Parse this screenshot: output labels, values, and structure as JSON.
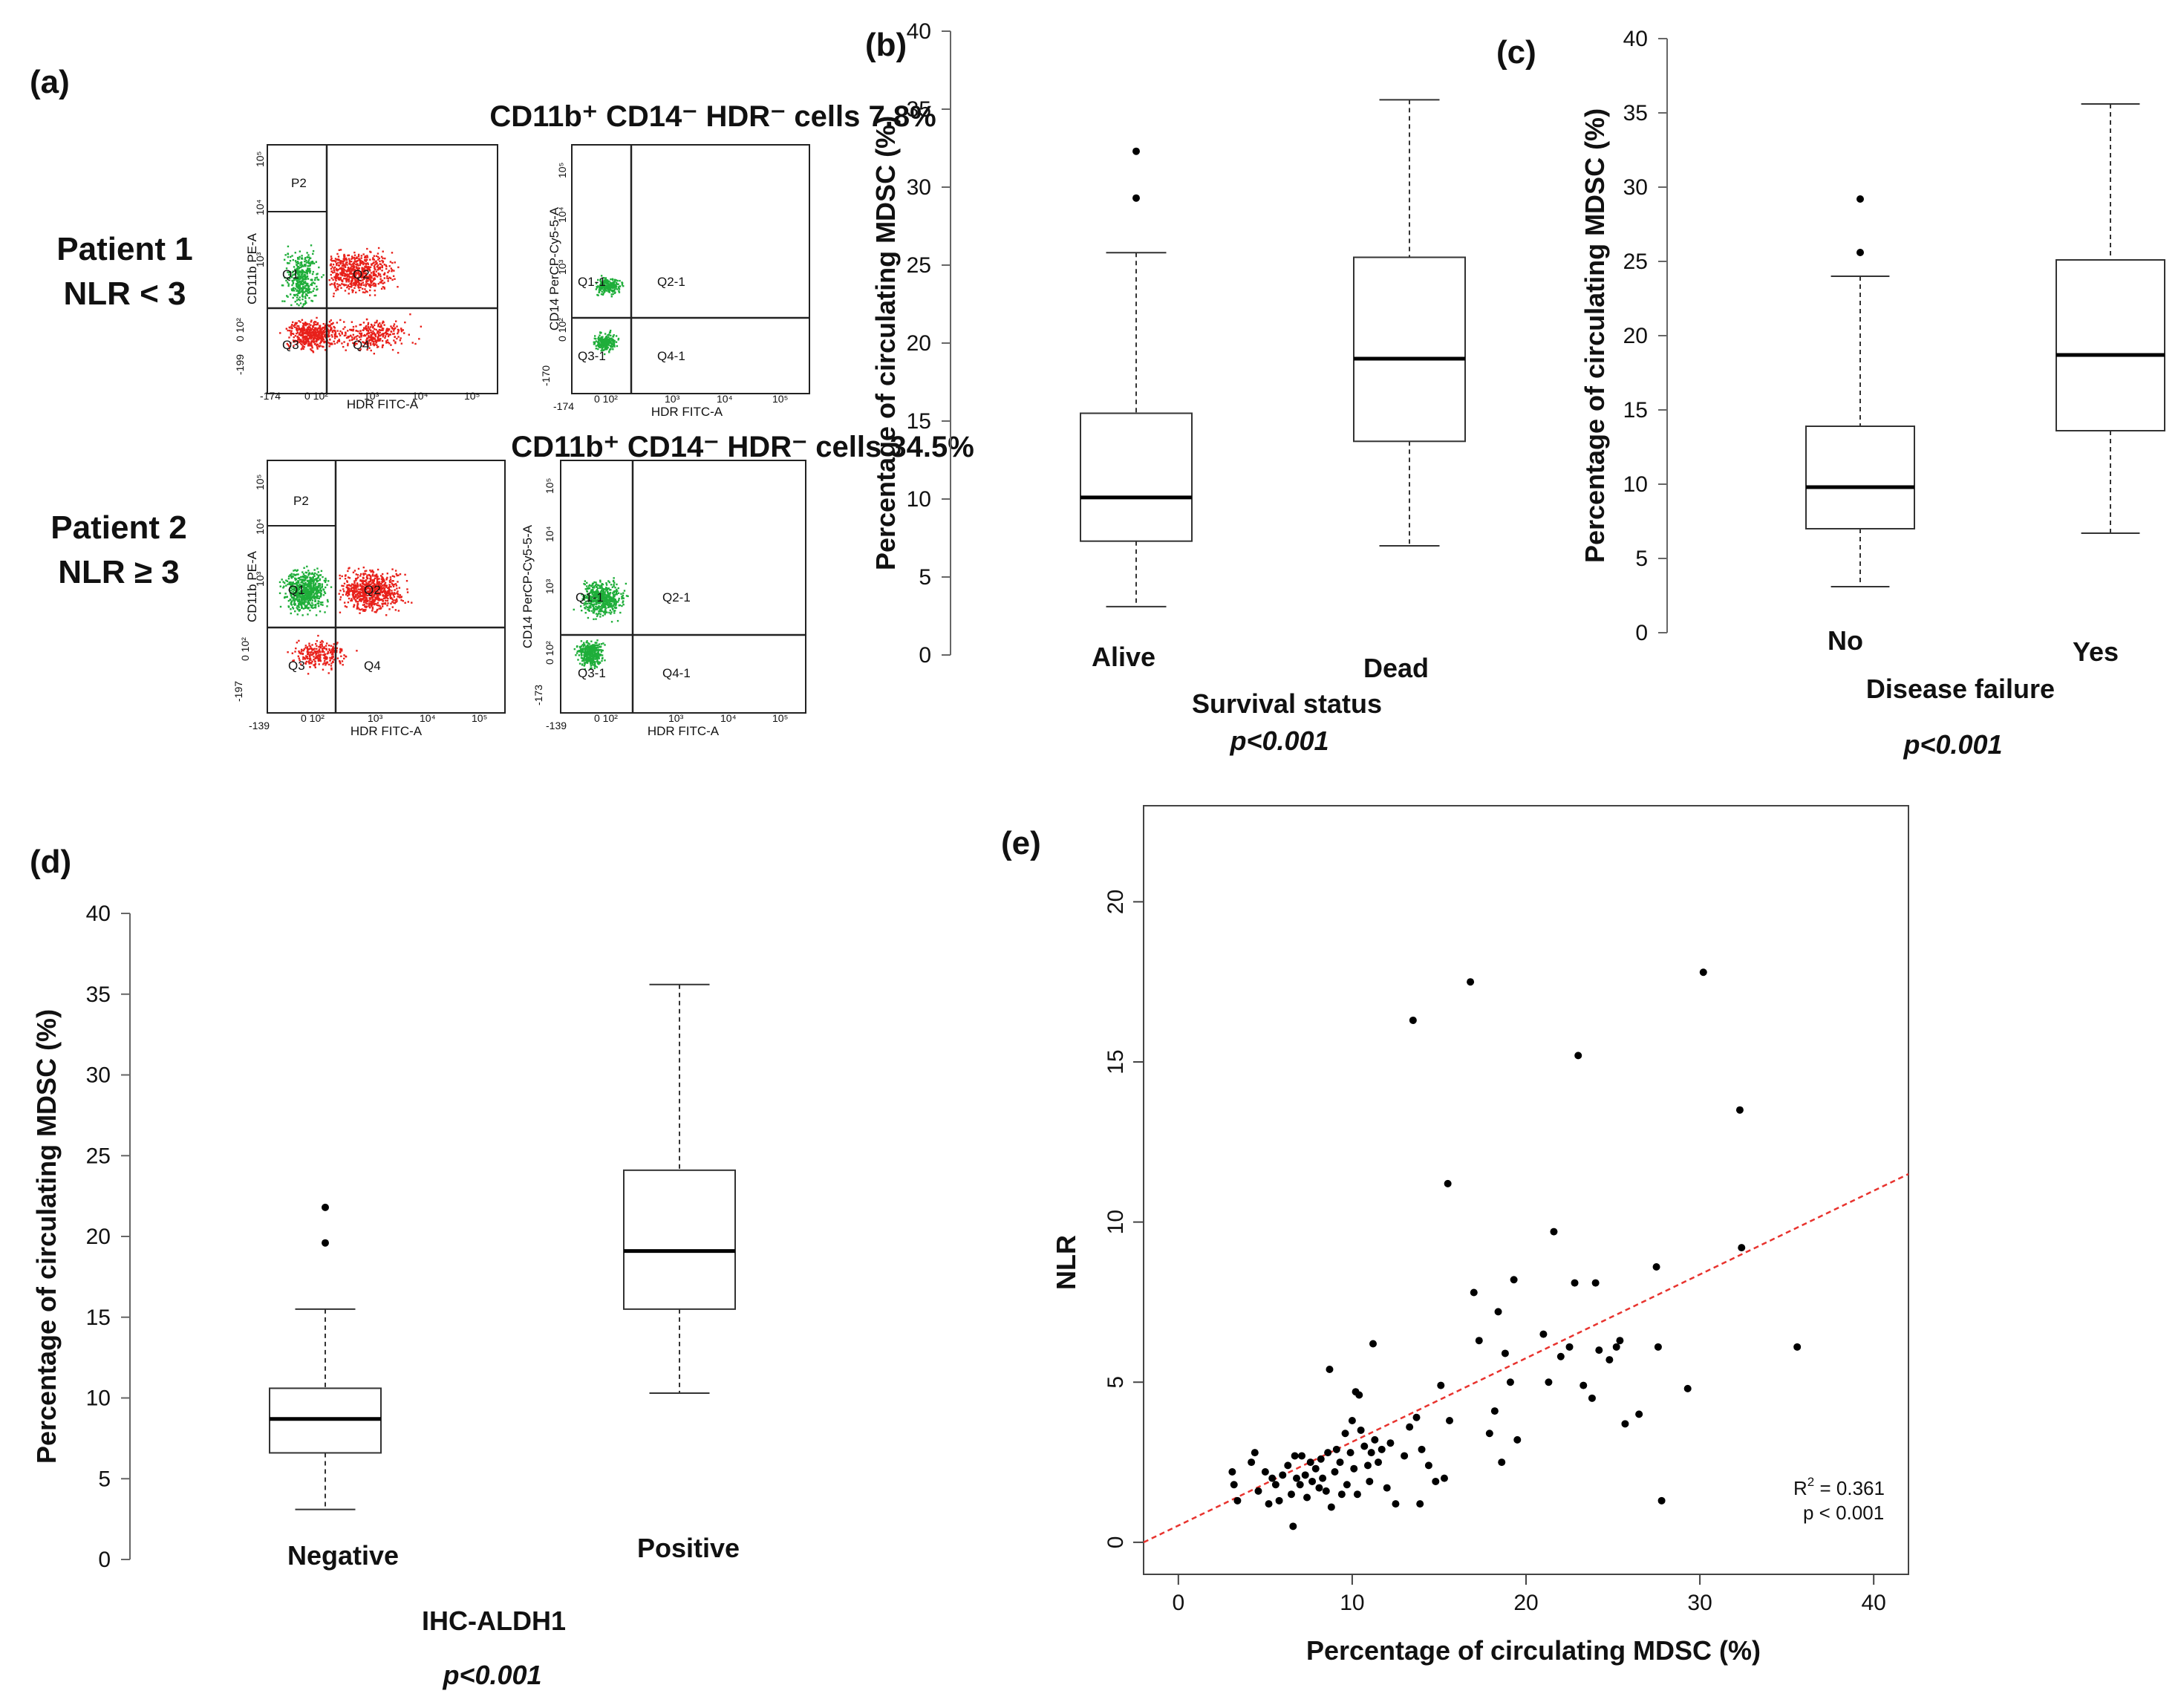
{
  "panel_a": {
    "label": "(a)",
    "patient1": {
      "line1": "Patient 1",
      "line2": "NLR < 3",
      "title": "CD11b⁺ CD14⁻ HDR⁻ cells 7.8%",
      "plot1": {
        "ylabel": "CD11b PE-A",
        "xlabel": "HDR FITC-A",
        "gate": "P2",
        "quadrants": [
          "Q1",
          "Q2",
          "Q3",
          "Q4"
        ],
        "xticks": [
          "-174",
          "0 10²",
          "10³",
          "10⁴",
          "10⁵"
        ],
        "yticks": [
          "-199",
          "0 10²",
          "10³",
          "10⁴",
          "10⁵"
        ]
      },
      "plot2": {
        "ylabel": "CD14 PerCP-Cy5-5-A",
        "xlabel": "HDR FITC-A",
        "quadrants": [
          "Q1-1",
          "Q2-1",
          "Q3-1",
          "Q4-1"
        ],
        "xticks": [
          "-174",
          "0 10²",
          "10³",
          "10⁴",
          "10⁵"
        ],
        "yticks": [
          "-170",
          "0 10²",
          "10³",
          "10⁴",
          "10⁵"
        ]
      }
    },
    "patient2": {
      "line1": "Patient 2",
      "line2": "NLR ≥ 3",
      "title": "CD11b⁺ CD14⁻ HDR⁻ cells 34.5%",
      "plot1": {
        "ylabel": "CD11b PE-A",
        "xlabel": "HDR FITC-A",
        "gate": "P2",
        "quadrants": [
          "Q1",
          "Q2",
          "Q3",
          "Q4"
        ],
        "xticks": [
          "-139",
          "0 10²",
          "10³",
          "10⁴",
          "10⁵"
        ],
        "yticks": [
          "-197",
          "0 10²",
          "10³",
          "10⁴",
          "10⁵"
        ]
      },
      "plot2": {
        "ylabel": "CD14 PerCP-Cy5-5-A",
        "xlabel": "HDR FITC-A",
        "quadrants": [
          "Q1-1",
          "Q2-1",
          "Q3-1",
          "Q4-1"
        ],
        "xticks": [
          "-139",
          "0 10²",
          "10³",
          "10⁴",
          "10⁵"
        ],
        "yticks": [
          "-173",
          "0 10²",
          "10³",
          "10⁴",
          "10⁵"
        ]
      }
    }
  },
  "colors": {
    "green": "#1fae3a",
    "red": "#e8211b",
    "box": "#333333",
    "regression": "#e8332e"
  },
  "chart_data": [
    {
      "id": "b",
      "label": "(b)",
      "type": "box",
      "ylabel": "Percentage of circulating MDSC (%)",
      "xlabel": "Survival status",
      "pvalue": "p<0.001",
      "ylim": [
        0,
        40
      ],
      "yticks": [
        0,
        5,
        10,
        15,
        20,
        25,
        30,
        35,
        40
      ],
      "categories": [
        "Alive",
        "Dead"
      ],
      "boxes": [
        {
          "min": 3.1,
          "q1": 7.3,
          "median": 10.1,
          "q3": 15.5,
          "max": 25.8,
          "outliers": [
            29.3,
            32.3
          ]
        },
        {
          "min": 7.0,
          "q1": 13.7,
          "median": 19.0,
          "q3": 25.5,
          "max": 35.6,
          "outliers": []
        }
      ]
    },
    {
      "id": "c",
      "label": "(c)",
      "type": "box",
      "ylabel": "Percentage of circulating MDSC (%)",
      "xlabel": "Disease failure",
      "pvalue": "p<0.001",
      "ylim": [
        0,
        40
      ],
      "yticks": [
        0,
        5,
        10,
        15,
        20,
        25,
        30,
        35,
        40
      ],
      "categories": [
        "No",
        "Yes"
      ],
      "boxes": [
        {
          "min": 3.1,
          "q1": 7.0,
          "median": 9.8,
          "q3": 13.9,
          "max": 24.0,
          "outliers": [
            25.6,
            29.2
          ]
        },
        {
          "min": 6.7,
          "q1": 13.6,
          "median": 18.7,
          "q3": 25.1,
          "max": 35.6,
          "outliers": []
        }
      ]
    },
    {
      "id": "d",
      "label": "(d)",
      "type": "box",
      "ylabel": "Percentage of circulating MDSC (%)",
      "xlabel": "IHC-ALDH1",
      "pvalue": "p<0.001",
      "ylim": [
        0,
        40
      ],
      "yticks": [
        0,
        5,
        10,
        15,
        20,
        25,
        30,
        35,
        40
      ],
      "categories": [
        "Negative",
        "Positive"
      ],
      "boxes": [
        {
          "min": 3.1,
          "q1": 6.6,
          "median": 8.7,
          "q3": 10.6,
          "max": 15.5,
          "outliers": [
            19.6,
            21.8
          ]
        },
        {
          "min": 10.3,
          "q1": 15.5,
          "median": 19.1,
          "q3": 24.1,
          "max": 35.6,
          "outliers": []
        }
      ]
    },
    {
      "id": "e",
      "label": "(e)",
      "type": "scatter",
      "xlabel": "Percentage of circulating MDSC (%)",
      "ylabel": "NLR",
      "xlim": [
        -2,
        42
      ],
      "ylim": [
        -1,
        23
      ],
      "xticks": [
        0,
        10,
        20,
        30,
        40
      ],
      "yticks": [
        0,
        5,
        10,
        15,
        20
      ],
      "r2_label": "R",
      "r2_sup": "2",
      "r2_value": " = 0.361",
      "pvalue": "p < 0.001",
      "regression": {
        "x0": -2,
        "y0": 0.0,
        "x1": 42,
        "y1": 11.5
      },
      "points": [
        [
          3.1,
          2.2
        ],
        [
          3.2,
          1.8
        ],
        [
          3.4,
          1.3
        ],
        [
          4.2,
          2.5
        ],
        [
          4.4,
          2.8
        ],
        [
          4.6,
          1.6
        ],
        [
          5.0,
          2.2
        ],
        [
          5.2,
          1.2
        ],
        [
          5.4,
          2.0
        ],
        [
          5.6,
          1.8
        ],
        [
          5.8,
          1.3
        ],
        [
          6.0,
          2.1
        ],
        [
          6.3,
          2.4
        ],
        [
          6.5,
          1.5
        ],
        [
          6.6,
          0.5
        ],
        [
          6.7,
          2.7
        ],
        [
          6.8,
          2.0
        ],
        [
          7.0,
          1.8
        ],
        [
          7.1,
          2.7
        ],
        [
          7.3,
          2.1
        ],
        [
          7.4,
          1.4
        ],
        [
          7.6,
          2.5
        ],
        [
          7.7,
          1.9
        ],
        [
          7.9,
          2.3
        ],
        [
          8.1,
          1.7
        ],
        [
          8.2,
          2.6
        ],
        [
          8.3,
          2.0
        ],
        [
          8.5,
          1.6
        ],
        [
          8.6,
          2.8
        ],
        [
          8.7,
          5.4
        ],
        [
          8.8,
          1.1
        ],
        [
          9.0,
          2.2
        ],
        [
          9.1,
          2.9
        ],
        [
          9.3,
          2.5
        ],
        [
          9.4,
          1.5
        ],
        [
          9.6,
          3.4
        ],
        [
          9.7,
          1.8
        ],
        [
          9.9,
          2.8
        ],
        [
          10.0,
          3.8
        ],
        [
          10.1,
          2.3
        ],
        [
          10.2,
          4.7
        ],
        [
          10.3,
          1.5
        ],
        [
          10.4,
          4.6
        ],
        [
          10.5,
          3.5
        ],
        [
          10.7,
          3.0
        ],
        [
          10.9,
          2.4
        ],
        [
          11.0,
          1.9
        ],
        [
          11.1,
          2.8
        ],
        [
          11.2,
          6.2
        ],
        [
          11.3,
          3.2
        ],
        [
          11.5,
          2.5
        ],
        [
          11.7,
          2.9
        ],
        [
          12.0,
          1.7
        ],
        [
          12.2,
          3.1
        ],
        [
          12.5,
          1.2
        ],
        [
          13.0,
          2.7
        ],
        [
          13.3,
          3.6
        ],
        [
          13.5,
          16.3
        ],
        [
          13.7,
          3.9
        ],
        [
          13.9,
          1.2
        ],
        [
          14.0,
          2.9
        ],
        [
          14.4,
          2.4
        ],
        [
          14.8,
          1.9
        ],
        [
          15.1,
          4.9
        ],
        [
          15.3,
          2.0
        ],
        [
          15.5,
          11.2
        ],
        [
          15.6,
          3.8
        ],
        [
          16.8,
          17.5
        ],
        [
          17.0,
          7.8
        ],
        [
          17.3,
          6.3
        ],
        [
          17.9,
          3.4
        ],
        [
          18.2,
          4.1
        ],
        [
          18.4,
          7.2
        ],
        [
          18.6,
          2.5
        ],
        [
          18.8,
          5.9
        ],
        [
          19.1,
          5.0
        ],
        [
          19.3,
          8.2
        ],
        [
          19.5,
          3.2
        ],
        [
          21.0,
          6.5
        ],
        [
          21.3,
          5.0
        ],
        [
          21.6,
          9.7
        ],
        [
          22.0,
          5.8
        ],
        [
          22.5,
          6.1
        ],
        [
          22.8,
          8.1
        ],
        [
          23.0,
          15.2
        ],
        [
          23.3,
          4.9
        ],
        [
          23.8,
          4.5
        ],
        [
          24.0,
          8.1
        ],
        [
          24.2,
          6.0
        ],
        [
          24.8,
          5.7
        ],
        [
          25.2,
          6.1
        ],
        [
          25.4,
          6.3
        ],
        [
          25.7,
          3.7
        ],
        [
          26.5,
          4.0
        ],
        [
          27.5,
          8.6
        ],
        [
          27.6,
          6.1
        ],
        [
          27.8,
          1.3
        ],
        [
          29.3,
          4.8
        ],
        [
          30.2,
          17.8
        ],
        [
          32.3,
          13.5
        ],
        [
          32.4,
          9.2
        ],
        [
          35.6,
          6.1
        ]
      ]
    }
  ]
}
